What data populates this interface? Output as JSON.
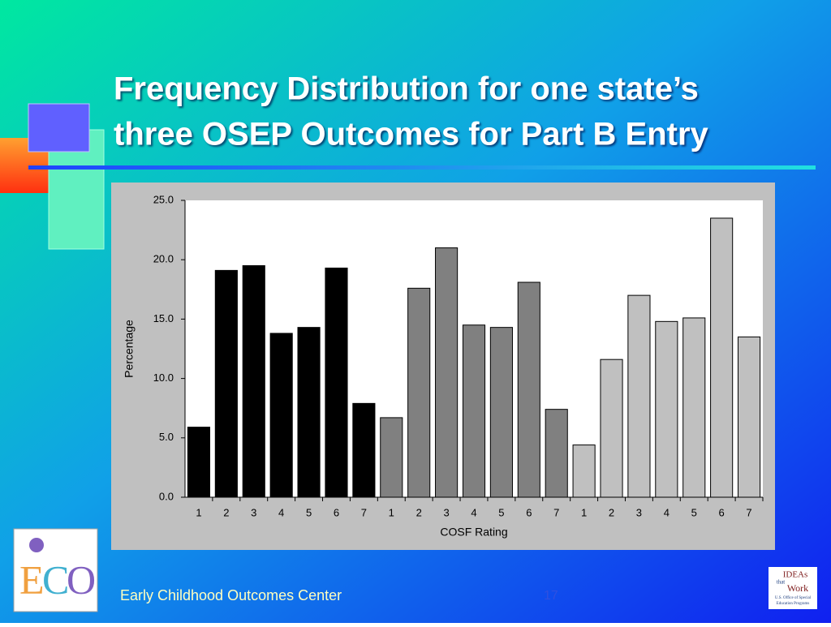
{
  "chart_data": {
    "type": "bar",
    "title": [
      "Frequency Distribution for one state’s",
      "three OSEP Outcomes for Part B Entry"
    ],
    "ylabel": "Percentage",
    "xlabel": "COSF Rating",
    "categories": [
      "1",
      "2",
      "3",
      "4",
      "5",
      "6",
      "7",
      "1",
      "2",
      "3",
      "4",
      "5",
      "6",
      "7",
      "1",
      "2",
      "3",
      "4",
      "5",
      "6",
      "7"
    ],
    "values": [
      5.9,
      19.1,
      19.5,
      13.8,
      14.3,
      19.3,
      7.9,
      6.7,
      17.6,
      21.0,
      14.5,
      14.3,
      18.1,
      7.4,
      4.4,
      11.6,
      17.0,
      14.8,
      15.1,
      23.5,
      13.5
    ],
    "colors": [
      "#000000",
      "#000000",
      "#000000",
      "#000000",
      "#000000",
      "#000000",
      "#000000",
      "#808080",
      "#808080",
      "#808080",
      "#808080",
      "#808080",
      "#808080",
      "#808080",
      "#c0c0c0",
      "#c0c0c0",
      "#c0c0c0",
      "#c0c0c0",
      "#c0c0c0",
      "#c0c0c0",
      "#c0c0c0"
    ],
    "ylim": [
      0,
      25
    ],
    "yticks": [
      {
        "value": 0,
        "label": "0.0"
      },
      {
        "value": 5,
        "label": "5.0"
      },
      {
        "value": 10,
        "label": "10.0"
      },
      {
        "value": 15,
        "label": "15.0"
      },
      {
        "value": 20,
        "label": "20.0"
      },
      {
        "value": 25,
        "label": "25.0"
      }
    ],
    "grid": false
  },
  "footer": {
    "text": "Early Childhood Outcomes Center",
    "page": "17"
  },
  "logo_right": [
    "IDEAs",
    "that",
    "Work",
    "U.S. Office of Special",
    "Education Programs"
  ]
}
